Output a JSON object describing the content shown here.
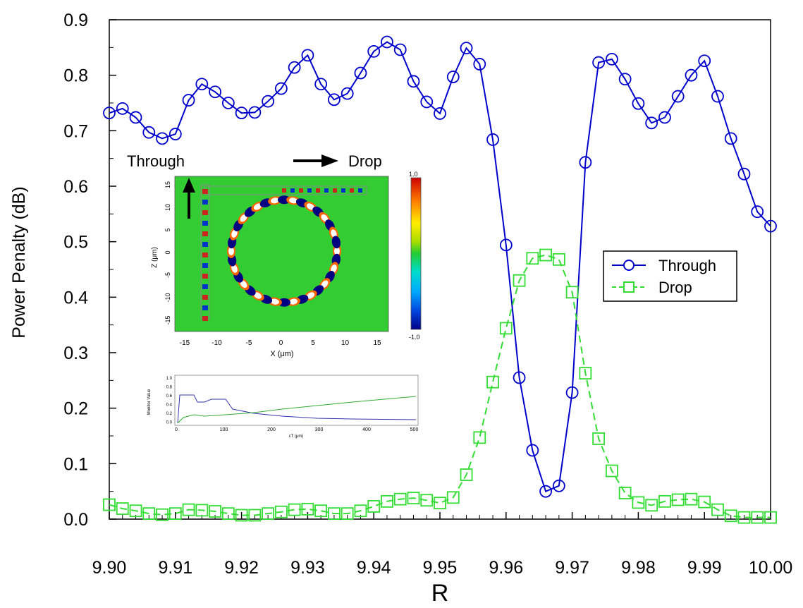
{
  "chart_data": {
    "type": "line",
    "title": "",
    "xlabel": "R",
    "ylabel": "Power Penalty (dB)",
    "xlim": [
      9.9,
      10.0
    ],
    "ylim": [
      0.0,
      0.9
    ],
    "xticks": [
      "9.90",
      "9.91",
      "9.92",
      "9.93",
      "9.94",
      "9.95",
      "9.96",
      "9.97",
      "9.98",
      "9.99",
      "10.00"
    ],
    "yticks": [
      "0.0",
      "0.1",
      "0.2",
      "0.3",
      "0.4",
      "0.5",
      "0.6",
      "0.7",
      "0.8",
      "0.9"
    ],
    "grid": false,
    "legend_position": "right",
    "series": [
      {
        "name": "Through",
        "color": "#0000cc",
        "marker": "circle",
        "line_style": "solid",
        "points": [
          [
            9.9,
            0.732
          ],
          [
            9.902,
            0.74
          ],
          [
            9.904,
            0.724
          ],
          [
            9.906,
            0.697
          ],
          [
            9.908,
            0.686
          ],
          [
            9.91,
            0.694
          ],
          [
            9.912,
            0.755
          ],
          [
            9.914,
            0.784
          ],
          [
            9.916,
            0.77
          ],
          [
            9.918,
            0.75
          ],
          [
            9.92,
            0.732
          ],
          [
            9.922,
            0.733
          ],
          [
            9.924,
            0.753
          ],
          [
            9.926,
            0.776
          ],
          [
            9.928,
            0.814
          ],
          [
            9.93,
            0.836
          ],
          [
            9.932,
            0.784
          ],
          [
            9.934,
            0.756
          ],
          [
            9.936,
            0.767
          ],
          [
            9.938,
            0.804
          ],
          [
            9.94,
            0.843
          ],
          [
            9.942,
            0.86
          ],
          [
            9.944,
            0.846
          ],
          [
            9.946,
            0.789
          ],
          [
            9.948,
            0.752
          ],
          [
            9.95,
            0.731
          ],
          [
            9.952,
            0.797
          ],
          [
            9.954,
            0.849
          ],
          [
            9.956,
            0.82
          ],
          [
            9.958,
            0.684
          ],
          [
            9.96,
            0.494
          ],
          [
            9.962,
            0.255
          ],
          [
            9.964,
            0.124
          ],
          [
            9.966,
            0.05
          ],
          [
            9.968,
            0.06
          ],
          [
            9.97,
            0.228
          ],
          [
            9.972,
            0.643
          ],
          [
            9.974,
            0.823
          ],
          [
            9.976,
            0.829
          ],
          [
            9.978,
            0.793
          ],
          [
            9.98,
            0.749
          ],
          [
            9.982,
            0.714
          ],
          [
            9.984,
            0.724
          ],
          [
            9.986,
            0.762
          ],
          [
            9.988,
            0.8
          ],
          [
            9.99,
            0.826
          ],
          [
            9.992,
            0.762
          ],
          [
            9.994,
            0.686
          ],
          [
            9.996,
            0.622
          ],
          [
            9.998,
            0.554
          ],
          [
            10.0,
            0.528
          ]
        ]
      },
      {
        "name": "Drop",
        "color": "#33dd33",
        "marker": "square",
        "line_style": "dashed",
        "points": [
          [
            9.9,
            0.026
          ],
          [
            9.902,
            0.019
          ],
          [
            9.904,
            0.015
          ],
          [
            9.906,
            0.01
          ],
          [
            9.908,
            0.008
          ],
          [
            9.91,
            0.01
          ],
          [
            9.912,
            0.017
          ],
          [
            9.914,
            0.016
          ],
          [
            9.916,
            0.014
          ],
          [
            9.918,
            0.01
          ],
          [
            9.92,
            0.007
          ],
          [
            9.922,
            0.007
          ],
          [
            9.924,
            0.01
          ],
          [
            9.926,
            0.013
          ],
          [
            9.928,
            0.017
          ],
          [
            9.93,
            0.018
          ],
          [
            9.932,
            0.015
          ],
          [
            9.934,
            0.01
          ],
          [
            9.936,
            0.01
          ],
          [
            9.938,
            0.015
          ],
          [
            9.94,
            0.023
          ],
          [
            9.942,
            0.032
          ],
          [
            9.944,
            0.036
          ],
          [
            9.946,
            0.038
          ],
          [
            9.948,
            0.034
          ],
          [
            9.95,
            0.029
          ],
          [
            9.952,
            0.039
          ],
          [
            9.954,
            0.08
          ],
          [
            9.956,
            0.147
          ],
          [
            9.958,
            0.247
          ],
          [
            9.96,
            0.344
          ],
          [
            9.962,
            0.43
          ],
          [
            9.964,
            0.47
          ],
          [
            9.966,
            0.476
          ],
          [
            9.968,
            0.468
          ],
          [
            9.97,
            0.409
          ],
          [
            9.972,
            0.263
          ],
          [
            9.974,
            0.145
          ],
          [
            9.976,
            0.087
          ],
          [
            9.978,
            0.047
          ],
          [
            9.98,
            0.03
          ],
          [
            9.982,
            0.025
          ],
          [
            9.984,
            0.032
          ],
          [
            9.986,
            0.035
          ],
          [
            9.988,
            0.036
          ],
          [
            9.99,
            0.031
          ],
          [
            9.992,
            0.017
          ],
          [
            9.994,
            0.006
          ],
          [
            9.996,
            0.003
          ],
          [
            9.998,
            0.003
          ],
          [
            10.0,
            0.003
          ]
        ]
      }
    ],
    "inset": {
      "label_through": "Through",
      "label_drop": "Drop",
      "map_ylabel": "Z (μm)",
      "map_xlabel": "X (μm)",
      "map_xticks": [
        "-15",
        "-10",
        "-5",
        "0",
        "5",
        "10",
        "15"
      ],
      "map_yticks": [
        "15",
        "10",
        "5",
        "0",
        "-5",
        "-10",
        "-15"
      ],
      "colorbar_max": "1.0",
      "colorbar_min": "-1.0",
      "monitor_ylabel": "Monitor Value",
      "monitor_xlabel": "cT (μm)",
      "monitor_xticks": [
        "0",
        "100",
        "200",
        "300",
        "400",
        "500"
      ],
      "monitor_yticks": [
        "1.0",
        "0.8",
        "0.6",
        "0.4",
        "0.2",
        "0.0"
      ]
    }
  }
}
